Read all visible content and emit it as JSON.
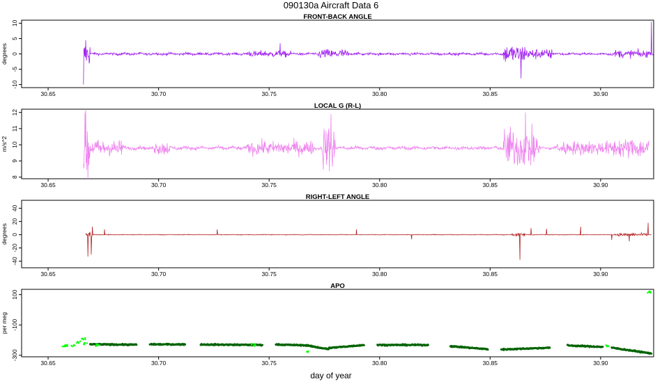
{
  "figure": {
    "title": "090130a    Aircraft Data 6",
    "xlabel": "day of year"
  },
  "colors": {
    "front_back": "#a020f0",
    "local_g": "#ee82ee",
    "right_left": "#b22222",
    "apo_dark": "#006400",
    "apo_light": "#00ff00"
  },
  "chart_data": [
    {
      "type": "line",
      "title": "FRONT-BACK ANGLE",
      "ylabel": "degrees",
      "xlim": [
        30.638,
        30.924
      ],
      "ylim": [
        -11,
        11
      ],
      "xticks": [
        30.65,
        30.7,
        30.75,
        30.8,
        30.85,
        30.9
      ],
      "xtick_labels": [
        "30.65",
        "30.70",
        "30.75",
        "30.80",
        "30.85",
        "30.90"
      ],
      "yticks": [
        -10,
        -5,
        0,
        5,
        10
      ],
      "ytick_labels": [
        "-10",
        "-5",
        "0",
        "5",
        "10"
      ],
      "series": [
        {
          "color": "#a020f0",
          "x_start": 30.666,
          "x_end": 30.924,
          "baseline": 0,
          "noise_base": 0.45,
          "burst_regions": [
            [
              30.666,
              30.669,
              4.5
            ],
            [
              30.74,
              30.76,
              1.2
            ],
            [
              30.772,
              30.786,
              1.8
            ],
            [
              30.856,
              30.866,
              3.5
            ],
            [
              30.866,
              30.878,
              2.0
            ],
            [
              30.906,
              30.922,
              1.5
            ]
          ],
          "notable_points": [
            [
              30.666,
              -10
            ],
            [
              30.667,
              4.5
            ],
            [
              30.755,
              3.5
            ],
            [
              30.864,
              -8
            ],
            [
              30.923,
              10.5
            ]
          ]
        }
      ]
    },
    {
      "type": "line",
      "title": "LOCAL G (R-L)",
      "ylabel": "m/s^2",
      "xlim": [
        30.638,
        30.924
      ],
      "ylim": [
        7.9,
        12.2
      ],
      "xticks": [
        30.65,
        30.7,
        30.75,
        30.8,
        30.85,
        30.9
      ],
      "xtick_labels": [
        "30.65",
        "30.70",
        "30.75",
        "30.80",
        "30.85",
        "30.90"
      ],
      "yticks": [
        8,
        9,
        10,
        11,
        12
      ],
      "ytick_labels": [
        "8",
        "9",
        "10",
        "11",
        "12"
      ],
      "series": [
        {
          "color": "#ee82ee",
          "x_start": 30.666,
          "x_end": 30.922,
          "baseline": 9.8,
          "noise_base": 0.12,
          "burst_regions": [
            [
              30.666,
              30.669,
              2.2
            ],
            [
              30.669,
              30.684,
              0.6
            ],
            [
              30.698,
              30.705,
              0.5
            ],
            [
              30.74,
              30.77,
              0.5
            ],
            [
              30.774,
              30.78,
              1.6
            ],
            [
              30.856,
              30.872,
              1.4
            ],
            [
              30.88,
              30.905,
              0.5
            ],
            [
              30.905,
              30.922,
              0.7
            ]
          ],
          "notable_points": [
            [
              30.667,
              12.2
            ],
            [
              30.668,
              7.9
            ],
            [
              30.778,
              11.9
            ],
            [
              30.866,
              12.0
            ]
          ]
        }
      ]
    },
    {
      "type": "line",
      "title": "RIGHT-LEFT ANGLE",
      "ylabel": "degrees",
      "xlim": [
        30.638,
        30.924
      ],
      "ylim": [
        -50,
        52
      ],
      "xticks": [
        30.65,
        30.7,
        30.75,
        30.8,
        30.85,
        30.9
      ],
      "xtick_labels": [
        "30.65",
        "30.70",
        "30.75",
        "30.80",
        "30.85",
        "30.90"
      ],
      "yticks": [
        -40,
        -20,
        0,
        20,
        40
      ],
      "ytick_labels": [
        "-40",
        "-20",
        "0",
        "20",
        "40"
      ],
      "series": [
        {
          "color": "#b22222",
          "x_start": 30.667,
          "x_end": 30.923,
          "baseline": 0,
          "noise_base": 0.5,
          "burst_regions": [
            [
              30.667,
              30.67,
              8
            ],
            [
              30.86,
              30.866,
              3
            ],
            [
              30.906,
              30.922,
              3
            ]
          ],
          "notable_points": [
            [
              30.668,
              -33
            ],
            [
              30.6695,
              -30
            ],
            [
              30.67,
              12
            ],
            [
              30.6755,
              8
            ],
            [
              30.7265,
              8
            ],
            [
              30.7895,
              8
            ],
            [
              30.8145,
              -7
            ],
            [
              30.8635,
              -38
            ],
            [
              30.8685,
              10
            ],
            [
              30.8755,
              9
            ],
            [
              30.891,
              12
            ],
            [
              30.905,
              -8
            ],
            [
              30.913,
              -10
            ],
            [
              30.9215,
              18
            ]
          ]
        }
      ]
    },
    {
      "type": "scatter",
      "title": "APO",
      "ylabel": "per meg",
      "xlim": [
        30.638,
        30.924
      ],
      "ylim": [
        -310,
        135
      ],
      "xticks": [
        30.65,
        30.7,
        30.75,
        30.8,
        30.85,
        30.9
      ],
      "xtick_labels": [
        "30.65",
        "30.70",
        "30.75",
        "30.80",
        "30.85",
        "30.90"
      ],
      "yticks": [
        -300,
        -100,
        100
      ],
      "ytick_labels": [
        "-300",
        "-100",
        "100"
      ],
      "series": [
        {
          "color": "#006400",
          "segments": [
            [
              30.669,
              30.69,
              -228,
              -230
            ],
            [
              30.696,
              30.712,
              -228,
              -228
            ],
            [
              30.719,
              30.747,
              -229,
              -232
            ],
            [
              30.753,
              30.768,
              -229,
              -235
            ],
            [
              30.768,
              30.777,
              -238,
              -260
            ],
            [
              30.777,
              30.793,
              -252,
              -232
            ],
            [
              30.799,
              30.822,
              -232,
              -232
            ],
            [
              30.832,
              30.849,
              -240,
              -260
            ],
            [
              30.855,
              30.877,
              -262,
              -250
            ],
            [
              30.885,
              30.901,
              -235,
              -245
            ],
            [
              30.905,
              30.923,
              -250,
              -288
            ]
          ]
        },
        {
          "color": "#00ff00",
          "points": [
            [
              30.657,
              -240
            ],
            [
              30.659,
              -235
            ],
            [
              30.661,
              -235
            ],
            [
              30.664,
              -215
            ],
            [
              30.666,
              -195
            ],
            [
              30.667,
              -225
            ],
            [
              30.672,
              -232
            ],
            [
              30.743,
              -230
            ],
            [
              30.767,
              -278
            ],
            [
              30.903,
              -238
            ],
            [
              30.922,
              115
            ]
          ]
        }
      ]
    }
  ]
}
